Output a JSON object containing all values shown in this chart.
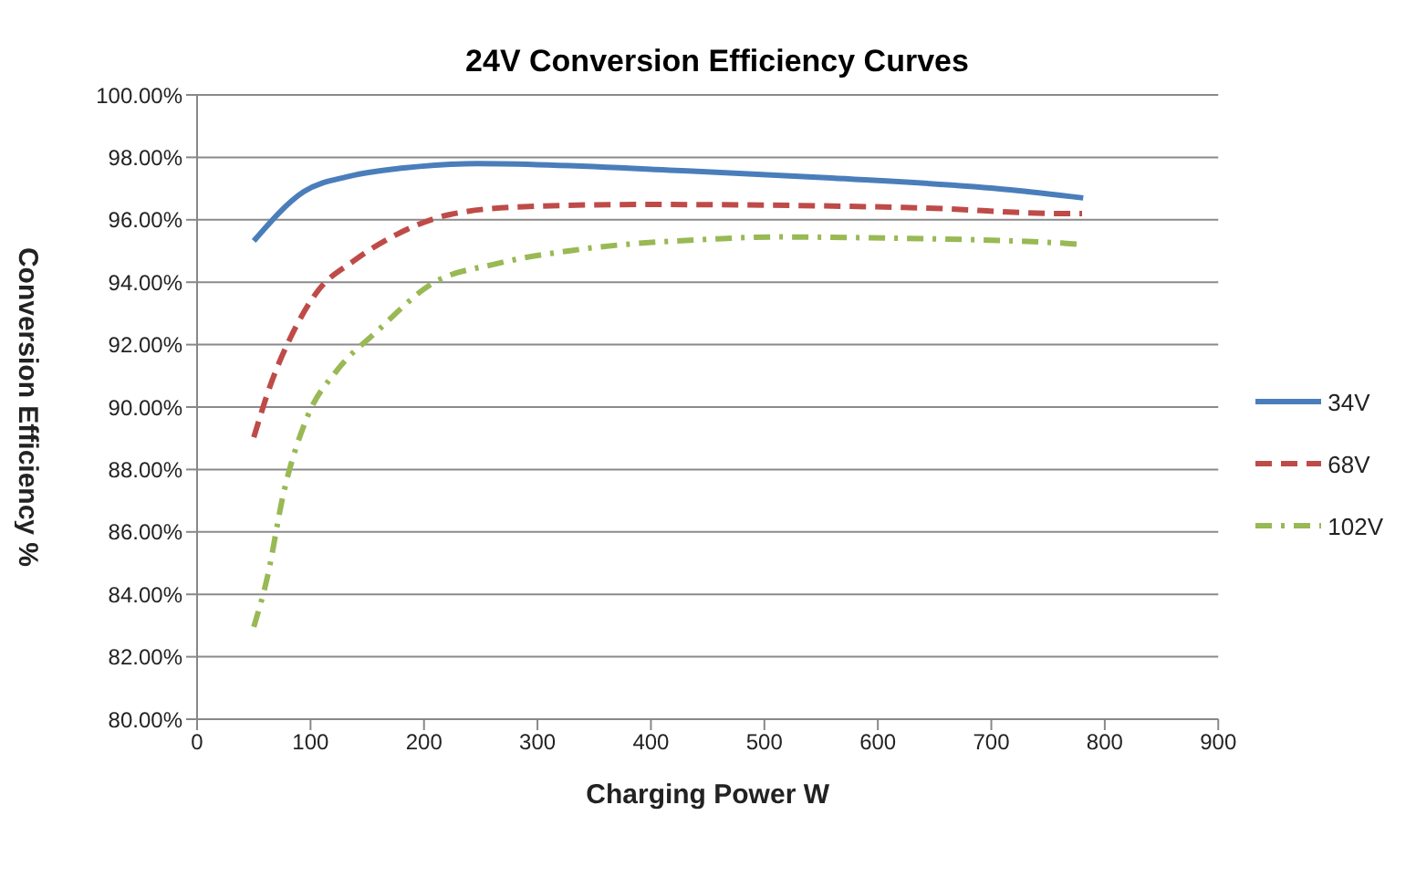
{
  "chart_data": {
    "type": "line",
    "title": "24V Conversion Efficiency Curves",
    "xlabel": "Charging Power W",
    "ylabel": "Conversion Efficiency %",
    "series": [
      {
        "name": "34V",
        "color": "#4a7ebb",
        "line_style": "solid",
        "x": [
          50,
          94,
          135,
          182,
          247,
          441,
          559,
          717,
          781
        ],
        "values": [
          95.32,
          96.9,
          97.4,
          97.66,
          97.8,
          97.55,
          97.34,
          96.96,
          96.7
        ]
      },
      {
        "name": "68V",
        "color": "#be4b48",
        "line_style": "dashed",
        "x": [
          50,
          65,
          82,
          106,
          138,
          176,
          223,
          288,
          394,
          640,
          761,
          780
        ],
        "values": [
          89.03,
          90.74,
          92.2,
          93.7,
          94.68,
          95.53,
          96.17,
          96.42,
          96.49,
          96.38,
          96.2,
          96.2
        ]
      },
      {
        "name": "102V",
        "color": "#98b954",
        "line_style": "dashdot",
        "x": [
          50,
          62,
          76,
          97,
          123,
          159,
          206,
          265,
          335,
          453,
          510,
          576,
          764,
          780
        ],
        "values": [
          82.96,
          84.56,
          87.2,
          89.67,
          91.16,
          92.44,
          93.93,
          94.6,
          95.04,
          95.38,
          95.45,
          95.43,
          95.25,
          95.2
        ]
      }
    ],
    "xlim": [
      0,
      900
    ],
    "xticks": [
      0,
      100,
      200,
      300,
      400,
      500,
      600,
      700,
      800,
      900
    ],
    "ylim": [
      80,
      100
    ],
    "yticks": [
      {
        "value": 80,
        "label": "80.00%"
      },
      {
        "value": 82,
        "label": "82.00%"
      },
      {
        "value": 84,
        "label": "84.00%"
      },
      {
        "value": 86,
        "label": "86.00%"
      },
      {
        "value": 88,
        "label": "88.00%"
      },
      {
        "value": 90,
        "label": "90.00%"
      },
      {
        "value": 92,
        "label": "92.00%"
      },
      {
        "value": 94,
        "label": "94.00%"
      },
      {
        "value": 96,
        "label": "96.00%"
      },
      {
        "value": 98,
        "label": "98.00%"
      },
      {
        "value": 100,
        "label": "100.00%"
      }
    ],
    "grid": "y",
    "legend": "right",
    "marker": "none"
  }
}
